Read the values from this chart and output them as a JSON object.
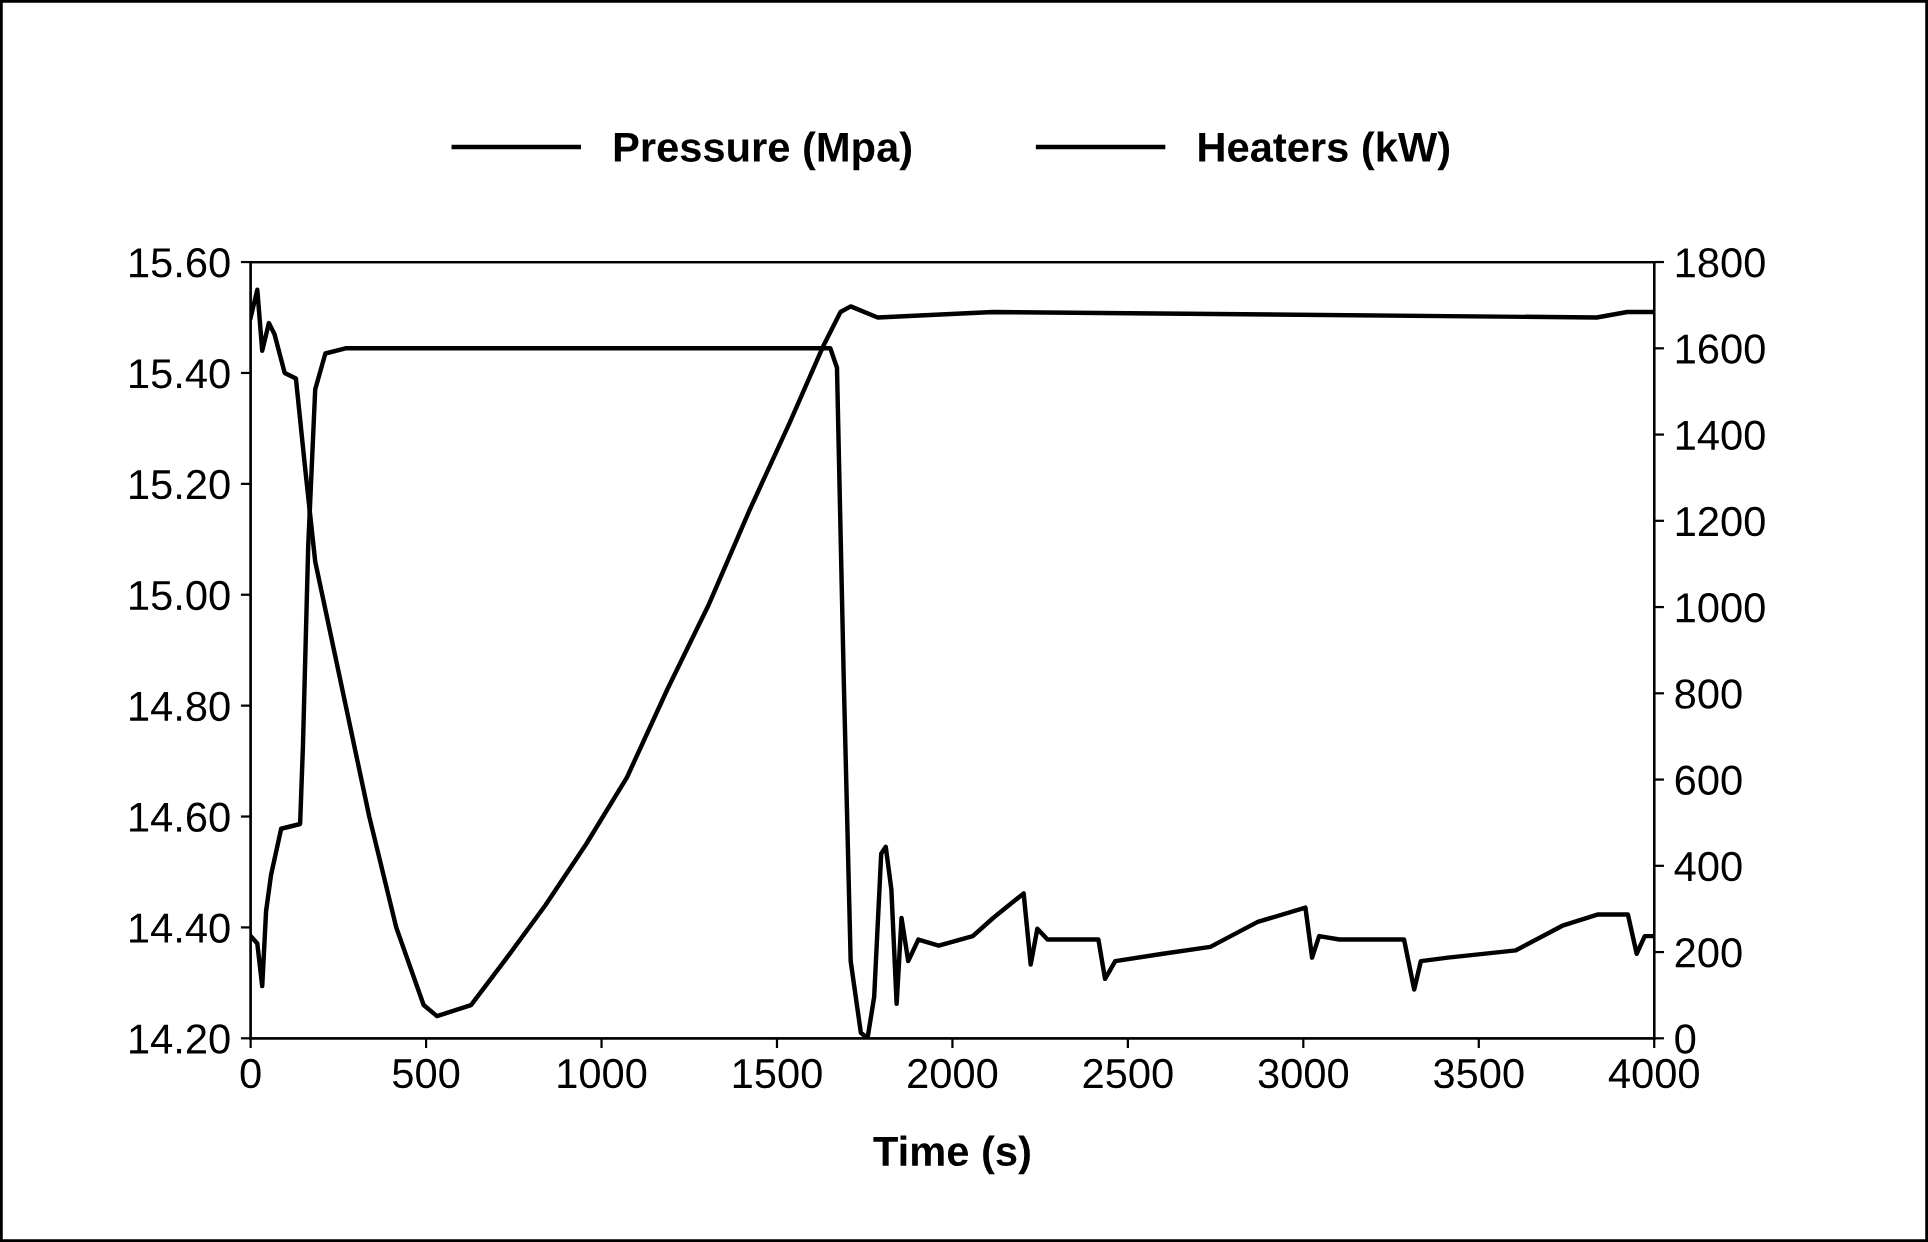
{
  "chart_data": {
    "type": "line",
    "xlabel": "Time (s)",
    "xlim": [
      0,
      4000
    ],
    "xticks": [
      0,
      500,
      1000,
      1500,
      2000,
      2500,
      3000,
      3500,
      4000
    ],
    "ylim": [
      14.2,
      15.6
    ],
    "yticks": [
      {
        "value": 14.2,
        "label": "14.20"
      },
      {
        "value": 14.4,
        "label": "14.40"
      },
      {
        "value": 14.6,
        "label": "14.60"
      },
      {
        "value": 14.8,
        "label": "14.80"
      },
      {
        "value": 15.0,
        "label": "15.00"
      },
      {
        "value": 15.2,
        "label": "15.20"
      },
      {
        "value": 15.4,
        "label": "15.40"
      },
      {
        "value": 15.6,
        "label": "15.60"
      }
    ],
    "y2lim": [
      0,
      1800
    ],
    "y2ticks": [
      0,
      200,
      400,
      600,
      800,
      1000,
      1200,
      1400,
      1600,
      1800
    ],
    "legend": "top",
    "grid": false,
    "marker": "none",
    "line_style": "solid",
    "series": [
      {
        "name": "Pressure (Mpa)",
        "color": "#000000",
        "x": [
          0,
          19,
          33,
          52,
          68,
          97,
          129,
          155,
          184,
          261,
          338,
          415,
          493,
          531,
          628,
          724,
          840,
          956,
          1072,
          1188,
          1304,
          1420,
          1536,
          1633,
          1681,
          1710,
          1787,
          2116,
          3836,
          3923,
          4000
        ],
        "values": [
          15.5,
          15.55,
          15.44,
          15.49,
          15.47,
          15.4,
          15.39,
          15.23,
          15.06,
          14.83,
          14.6,
          14.4,
          14.26,
          14.24,
          14.26,
          14.34,
          14.44,
          14.55,
          14.67,
          14.83,
          14.98,
          15.15,
          15.31,
          15.45,
          15.51,
          15.52,
          15.5,
          15.51,
          15.5,
          15.51,
          15.51
        ]
      },
      {
        "name": "Heaters (kW)",
        "color": "#000000",
        "axis": "y2",
        "x": [
          0,
          19,
          33,
          44,
          58,
          87,
          141,
          149,
          164,
          184,
          213,
          270,
          1652,
          1671,
          1690,
          1710,
          1739,
          1758,
          1777,
          1797,
          1810,
          1826,
          1841,
          1855,
          1874,
          1903,
          1961,
          2058,
          2116,
          2203,
          2223,
          2242,
          2271,
          2416,
          2435,
          2464,
          2600,
          2735,
          2870,
          3006,
          3025,
          3045,
          3103,
          3287,
          3316,
          3335,
          3412,
          3606,
          3741,
          3838,
          3925,
          3950,
          3973,
          4000
        ],
        "values": [
          237,
          220,
          121,
          295,
          378,
          486,
          497,
          676,
          1140,
          1505,
          1588,
          1600,
          1600,
          1555,
          842,
          179,
          13,
          0,
          96,
          428,
          444,
          345,
          80,
          279,
          179,
          229,
          215,
          237,
          279,
          336,
          171,
          254,
          229,
          229,
          138,
          179,
          196,
          212,
          270,
          303,
          187,
          237,
          229,
          229,
          113,
          179,
          187,
          204,
          262,
          287,
          287,
          196,
          237,
          237
        ]
      }
    ]
  }
}
